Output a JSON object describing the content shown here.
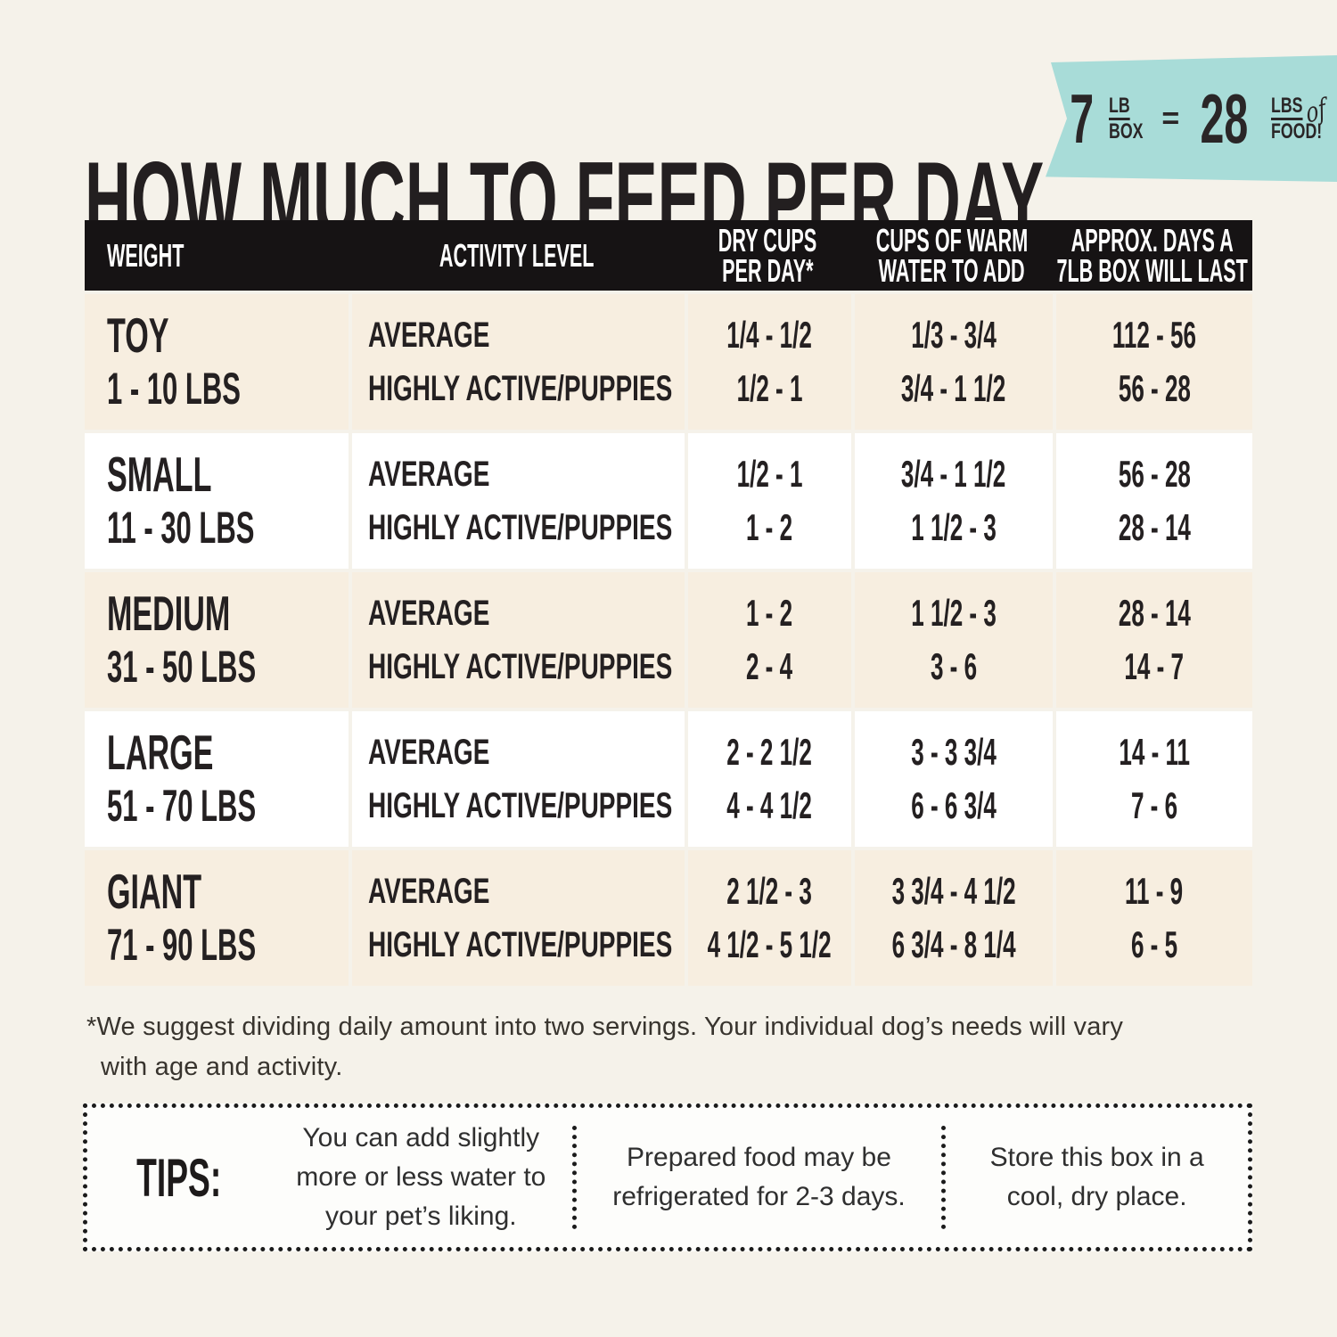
{
  "header": {
    "title": "HOW MUCH TO FEED PER DAY",
    "badge": {
      "box_qty": "7",
      "box_unit_top": "LB",
      "box_unit_bottom": "BOX",
      "equals": "=",
      "food_qty": "28",
      "food_unit_top": "LBS",
      "of_script": "of",
      "food_unit_bottom": "FOOD!"
    }
  },
  "table": {
    "columns": [
      {
        "line1": "WEIGHT",
        "line2": ""
      },
      {
        "line1": "ACTIVITY LEVEL",
        "line2": ""
      },
      {
        "line1": "DRY CUPS",
        "line2": "PER DAY*"
      },
      {
        "line1": "CUPS OF WARM",
        "line2": "WATER TO ADD"
      },
      {
        "line1": "APPROX. DAYS A",
        "line2": "7LB BOX WILL LAST"
      }
    ],
    "rows": [
      {
        "size": "TOY",
        "weight_range": "1 - 10 LBS",
        "activity": [
          "AVERAGE",
          "HIGHLY ACTIVE/PUPPIES"
        ],
        "dry_cups": [
          "1/4 - 1/2",
          "1/2 - 1"
        ],
        "warm_water": [
          "1/3 - 3/4",
          "3/4 - 1 1/2"
        ],
        "days_last": [
          "112 - 56",
          "56 - 28"
        ]
      },
      {
        "size": "SMALL",
        "weight_range": "11 - 30 LBS",
        "activity": [
          "AVERAGE",
          "HIGHLY ACTIVE/PUPPIES"
        ],
        "dry_cups": [
          "1/2 - 1",
          "1 - 2"
        ],
        "warm_water": [
          "3/4 - 1 1/2",
          "1 1/2 - 3"
        ],
        "days_last": [
          "56 - 28",
          "28 - 14"
        ]
      },
      {
        "size": "MEDIUM",
        "weight_range": "31 - 50 LBS",
        "activity": [
          "AVERAGE",
          "HIGHLY ACTIVE/PUPPIES"
        ],
        "dry_cups": [
          "1 - 2",
          "2 - 4"
        ],
        "warm_water": [
          "1 1/2 - 3",
          "3 - 6"
        ],
        "days_last": [
          "28 - 14",
          "14 - 7"
        ]
      },
      {
        "size": "LARGE",
        "weight_range": "51 - 70 LBS",
        "activity": [
          "AVERAGE",
          "HIGHLY ACTIVE/PUPPIES"
        ],
        "dry_cups": [
          "2 - 2 1/2",
          "4 - 4 1/2"
        ],
        "warm_water": [
          "3 - 3 3/4",
          "6 - 6 3/4"
        ],
        "days_last": [
          "14 - 11",
          "7 - 6"
        ]
      },
      {
        "size": "GIANT",
        "weight_range": "71 - 90 LBS",
        "activity": [
          "AVERAGE",
          "HIGHLY ACTIVE/PUPPIES"
        ],
        "dry_cups": [
          "2 1/2 - 3",
          "4 1/2 - 5 1/2"
        ],
        "warm_water": [
          "3 3/4 - 4 1/2",
          "6 3/4 - 8 1/4"
        ],
        "days_last": [
          "11 - 9",
          "6 - 5"
        ]
      }
    ]
  },
  "footnote": {
    "line1": "*We suggest dividing daily amount into two servings. Your individual dog’s needs will vary",
    "line2": "with age and activity."
  },
  "tips": {
    "label": "TIPS:",
    "items": [
      "You can add slightly more or less water to your pet’s liking.",
      "Prepared food may be refrigerated for 2-3 days.",
      "Store this box in a cool, dry place."
    ]
  },
  "colors": {
    "background": "#f5f2ea",
    "row_beige": "#f7eee0",
    "row_white": "#ffffff",
    "header_bar": "#161314",
    "badge_teal": "#a8dcd8",
    "text_dark": "#242021"
  },
  "chart_data": {
    "type": "table",
    "title": "HOW MUCH TO FEED PER DAY",
    "columns": [
      "WEIGHT",
      "ACTIVITY LEVEL",
      "DRY CUPS PER DAY*",
      "CUPS OF WARM WATER TO ADD",
      "APPROX. DAYS A 7LB BOX WILL LAST"
    ],
    "rows": [
      [
        "TOY 1 - 10 LBS",
        "AVERAGE",
        "1/4 - 1/2",
        "1/3 - 3/4",
        "112 - 56"
      ],
      [
        "TOY 1 - 10 LBS",
        "HIGHLY ACTIVE/PUPPIES",
        "1/2 - 1",
        "3/4 - 1 1/2",
        "56 - 28"
      ],
      [
        "SMALL 11 - 30 LBS",
        "AVERAGE",
        "1/2 - 1",
        "3/4 - 1 1/2",
        "56 - 28"
      ],
      [
        "SMALL 11 - 30 LBS",
        "HIGHLY ACTIVE/PUPPIES",
        "1 - 2",
        "1 1/2 - 3",
        "28 - 14"
      ],
      [
        "MEDIUM 31 - 50 LBS",
        "AVERAGE",
        "1 - 2",
        "1 1/2 - 3",
        "28 - 14"
      ],
      [
        "MEDIUM 31 - 50 LBS",
        "HIGHLY ACTIVE/PUPPIES",
        "2 - 4",
        "3 - 6",
        "14 - 7"
      ],
      [
        "LARGE 51 - 70 LBS",
        "AVERAGE",
        "2 - 2 1/2",
        "3 - 3 3/4",
        "14 - 11"
      ],
      [
        "LARGE 51 - 70 LBS",
        "HIGHLY ACTIVE/PUPPIES",
        "4 - 4 1/2",
        "6 - 6 3/4",
        "7 - 6"
      ],
      [
        "GIANT 71 - 90 LBS",
        "AVERAGE",
        "2 1/2 - 3",
        "3 3/4 - 4 1/2",
        "11 - 9"
      ],
      [
        "GIANT 71 - 90 LBS",
        "HIGHLY ACTIVE/PUPPIES",
        "4 1/2 - 5 1/2",
        "6 3/4 - 8 1/4",
        "6 - 5"
      ]
    ],
    "footnote": "*We suggest dividing daily amount into two servings. Your individual dog’s needs will vary with age and activity.",
    "badge_equivalence": "7 LB BOX = 28 LBS of FOOD!"
  }
}
